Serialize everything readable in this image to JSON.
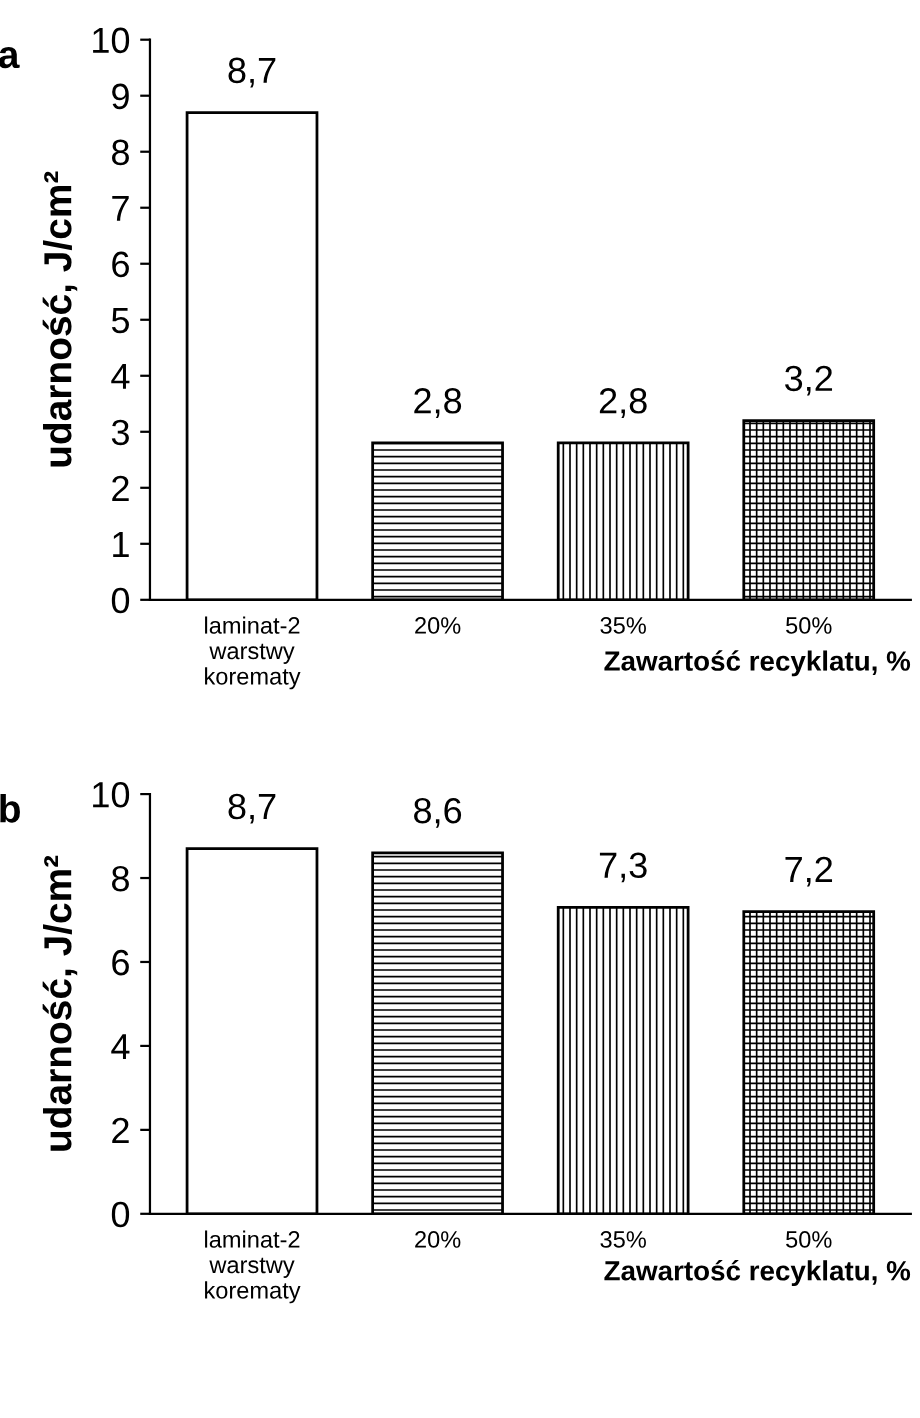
{
  "chart_data": [
    {
      "type": "bar",
      "title": "a",
      "ylabel": "udarność, J/cm²",
      "xlabel": "Zawartość recyklatu, %",
      "categories": [
        "laminat-2\nwarstwy\nkorematy",
        "20%",
        "35%",
        "50%"
      ],
      "values": [
        8.7,
        2.8,
        2.8,
        3.2
      ],
      "value_labels": [
        "8,7",
        "2,8",
        "2,8",
        "3,2"
      ],
      "colors": [
        "#ffffff",
        "#000000",
        "#000000",
        "#000000"
      ],
      "ylim": [
        0,
        10
      ],
      "yticks": [
        0,
        1,
        2,
        3,
        4,
        5,
        6,
        7,
        8,
        9,
        10
      ],
      "grid": false,
      "legend": false
    },
    {
      "type": "bar",
      "title": "b",
      "ylabel": "udarność, J/cm²",
      "xlabel": "Zawartość recyklatu, %",
      "categories": [
        "laminat-2\nwarstwy\nkorematy",
        "20%",
        "35%",
        "50%"
      ],
      "values": [
        8.7,
        8.6,
        7.3,
        7.2
      ],
      "value_labels": [
        "8,7",
        "8,6",
        "7,3",
        "7,2"
      ],
      "colors": [
        "#ffffff",
        "#000000",
        "#000000",
        "#000000"
      ],
      "ylim": [
        0,
        10
      ],
      "yticks": [
        0,
        2,
        4,
        6,
        8,
        10
      ],
      "grid": false,
      "legend": false
    }
  ]
}
